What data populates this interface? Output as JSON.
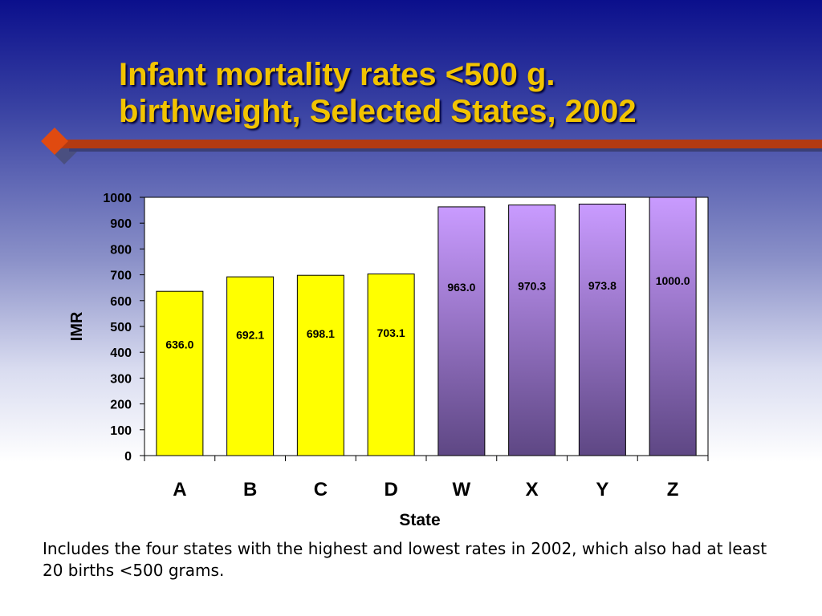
{
  "slide": {
    "title_line1": "Infant mortality rates <500 g.",
    "title_line2": "birthweight,  Selected States, 2002",
    "footnote": "Includes the four states with the highest and lowest rates in 2002, which also had at least 20 births <500 grams.",
    "colors": {
      "title": "#f2c400",
      "accent_bar": "#b33a12",
      "diamond": "#e04a10"
    }
  },
  "chart_data": {
    "type": "bar",
    "categories": [
      "A",
      "B",
      "C",
      "D",
      "W",
      "X",
      "Y",
      "Z"
    ],
    "values": [
      636.0,
      692.1,
      698.1,
      703.1,
      963.0,
      970.3,
      973.8,
      1000.0
    ],
    "data_labels": [
      "636.0",
      "692.1",
      "698.1",
      "703.1",
      "963.0",
      "970.3",
      "973.8",
      "1000.0"
    ],
    "xlabel": "State",
    "ylabel": "IMR",
    "ylim": [
      0,
      1000
    ],
    "yticks": [
      0,
      100,
      200,
      300,
      400,
      500,
      600,
      700,
      800,
      900,
      1000
    ],
    "grid": false,
    "legend": "none",
    "bar_colors": [
      "#ffff00",
      "#ffff00",
      "#ffff00",
      "#ffff00",
      "purple-gradient",
      "purple-gradient",
      "purple-gradient",
      "purple-gradient"
    ],
    "purple_gradient": [
      "#c99bff",
      "#5e4784"
    ]
  }
}
